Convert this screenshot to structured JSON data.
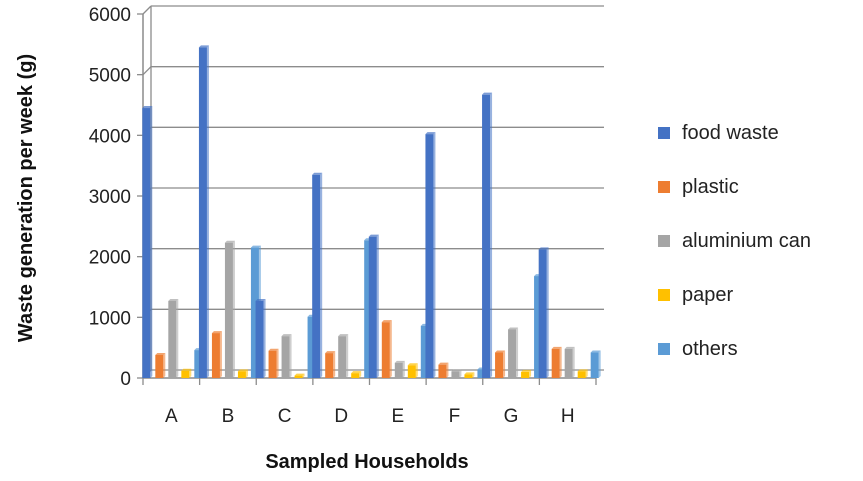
{
  "chart_data": {
    "type": "bar",
    "xlabel": "Sampled Households",
    "ylabel": "Waste generation per week (g)",
    "ylim": [
      0,
      6000
    ],
    "yticks": [
      0,
      1000,
      2000,
      3000,
      4000,
      5000,
      6000
    ],
    "grid": true,
    "legend_position": "right",
    "categories": [
      "A",
      "B",
      "C",
      "D",
      "E",
      "F",
      "G",
      "H"
    ],
    "series": [
      {
        "name": "food waste",
        "color": "#4472C4",
        "values": [
          4450,
          5450,
          1270,
          3350,
          2330,
          4020,
          4670,
          2120
        ]
      },
      {
        "name": "plastic",
        "color": "#ED7D31",
        "values": [
          380,
          740,
          450,
          410,
          920,
          220,
          420,
          480
        ]
      },
      {
        "name": "aluminium can",
        "color": "#A5A5A5",
        "values": [
          1270,
          2230,
          690,
          690,
          250,
          110,
          800,
          480
        ]
      },
      {
        "name": "paper",
        "color": "#FFC000",
        "values": [
          120,
          110,
          40,
          80,
          210,
          60,
          100,
          110
        ]
      },
      {
        "name": "others",
        "color": "#5B9BD5",
        "values": [
          460,
          2150,
          1010,
          2270,
          860,
          140,
          1680,
          420
        ]
      }
    ]
  }
}
